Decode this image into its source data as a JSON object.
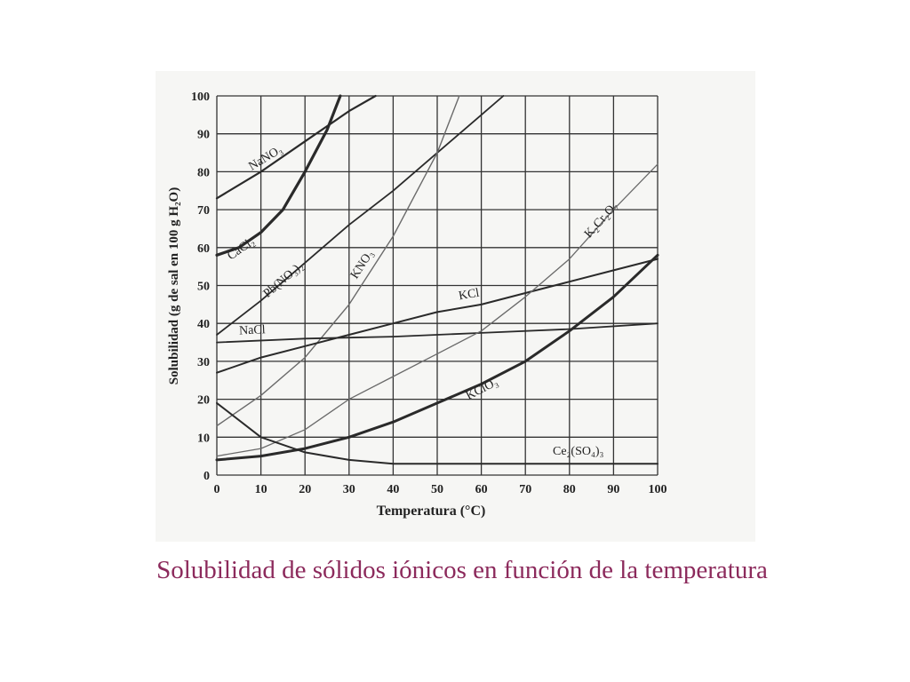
{
  "chart_data": {
    "type": "line",
    "title": "Solubilidad de sólidos iónicos en función de la temperatura",
    "x_label": "Temperatura (°C)",
    "y_label": "Solubilidad (g de sal en 100 g H₂O)",
    "xlim": [
      0,
      100
    ],
    "ylim": [
      0,
      100
    ],
    "xticks": [
      0,
      10,
      20,
      30,
      40,
      50,
      60,
      70,
      80,
      90,
      100
    ],
    "yticks": [
      0,
      10,
      20,
      30,
      40,
      50,
      60,
      70,
      80,
      90,
      100
    ],
    "grid": true,
    "series": [
      {
        "name": "NaNO₃",
        "color": "#2a2a2a",
        "x": [
          0,
          10,
          20,
          30,
          36
        ],
        "values": [
          73,
          80,
          88,
          96,
          100
        ]
      },
      {
        "name": "CaCl₂",
        "color": "#2a2a2a",
        "x": [
          0,
          5,
          10,
          15,
          20,
          25,
          28
        ],
        "values": [
          58,
          60,
          64,
          70,
          80,
          91,
          100
        ]
      },
      {
        "name": "Pb(NO₃)₂",
        "color": "#2a2a2a",
        "x": [
          0,
          10,
          20,
          30,
          40,
          50,
          60,
          65
        ],
        "values": [
          37,
          46,
          56,
          66,
          75,
          85,
          95,
          100
        ]
      },
      {
        "name": "KNO₃",
        "color": "#6a6a6a",
        "x": [
          0,
          10,
          20,
          30,
          40,
          50,
          55
        ],
        "values": [
          13,
          21,
          31,
          45,
          63,
          85,
          100
        ]
      },
      {
        "name": "KCl",
        "color": "#2a2a2a",
        "x": [
          0,
          10,
          20,
          30,
          40,
          50,
          60,
          70,
          80,
          90,
          100
        ],
        "values": [
          27,
          31,
          34,
          37,
          40,
          43,
          45,
          48,
          51,
          54,
          57
        ]
      },
      {
        "name": "NaCl",
        "color": "#2a2a2a",
        "x": [
          0,
          20,
          40,
          60,
          80,
          100
        ],
        "values": [
          35,
          36,
          36.5,
          37.5,
          38.5,
          40
        ]
      },
      {
        "name": "K₂Cr₂O₇",
        "color": "#6a6a6a",
        "x": [
          0,
          10,
          20,
          30,
          40,
          50,
          60,
          70,
          80,
          90,
          100
        ],
        "values": [
          5,
          7,
          12,
          20,
          26,
          32,
          38,
          47,
          57,
          70,
          82
        ]
      },
      {
        "name": "KClO₃",
        "color": "#2a2a2a",
        "x": [
          0,
          10,
          20,
          30,
          40,
          50,
          60,
          70,
          80,
          90,
          100
        ],
        "values": [
          4,
          5,
          7,
          10,
          14,
          19,
          24,
          30,
          38,
          47,
          58
        ]
      },
      {
        "name": "Ce₂(SO₄)₃",
        "color": "#2a2a2a",
        "x": [
          0,
          10,
          20,
          30,
          40,
          50,
          60,
          70,
          80,
          90,
          100
        ],
        "values": [
          19,
          10,
          6,
          4,
          3,
          3,
          3,
          3,
          3,
          3,
          3
        ]
      }
    ]
  }
}
